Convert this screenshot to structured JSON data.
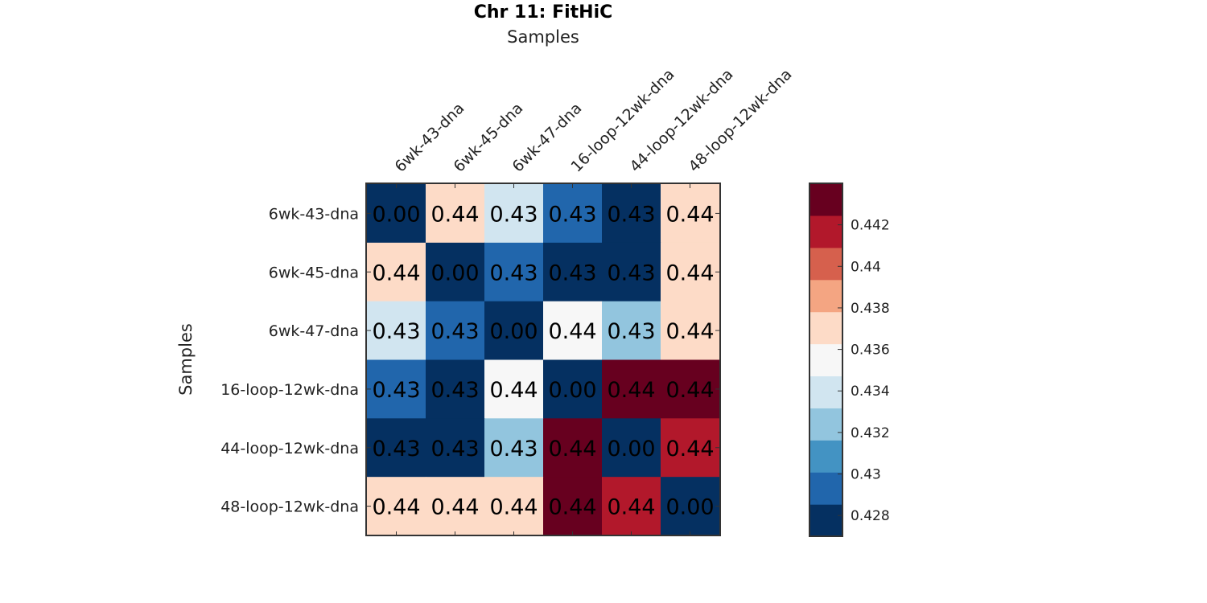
{
  "chart_data": {
    "type": "heatmap",
    "title": "Chr 11: FitHiC",
    "xlabel": "Samples",
    "ylabel": "Samples",
    "x_categories": [
      "6wk-43-dna",
      "6wk-45-dna",
      "6wk-47-dna",
      "16-loop-12wk-dna",
      "44-loop-12wk-dna",
      "48-loop-12wk-dna"
    ],
    "y_categories": [
      "6wk-43-dna",
      "6wk-45-dna",
      "6wk-47-dna",
      "16-loop-12wk-dna",
      "44-loop-12wk-dna",
      "48-loop-12wk-dna"
    ],
    "values": [
      [
        0.0,
        0.437,
        0.434,
        0.43,
        0.428,
        0.437
      ],
      [
        0.437,
        0.0,
        0.43,
        0.428,
        0.428,
        0.437
      ],
      [
        0.434,
        0.43,
        0.0,
        0.436,
        0.432,
        0.437
      ],
      [
        0.43,
        0.428,
        0.436,
        0.0,
        0.4435,
        0.4435
      ],
      [
        0.428,
        0.428,
        0.432,
        0.4435,
        0.0,
        0.442
      ],
      [
        0.437,
        0.437,
        0.437,
        0.4435,
        0.442,
        0.0
      ]
    ],
    "cell_labels": [
      [
        "0.00",
        "0.44",
        "0.43",
        "0.43",
        "0.43",
        "0.44"
      ],
      [
        "0.44",
        "0.00",
        "0.43",
        "0.43",
        "0.43",
        "0.44"
      ],
      [
        "0.43",
        "0.43",
        "0.00",
        "0.44",
        "0.43",
        "0.44"
      ],
      [
        "0.43",
        "0.43",
        "0.44",
        "0.00",
        "0.44",
        "0.44"
      ],
      [
        "0.43",
        "0.43",
        "0.43",
        "0.44",
        "0.00",
        "0.44"
      ],
      [
        "0.44",
        "0.44",
        "0.44",
        "0.44",
        "0.44",
        "0.00"
      ]
    ],
    "colorbar": {
      "range": [
        0.427,
        0.444
      ],
      "ticks": [
        "0.428",
        "0.43",
        "0.432",
        "0.434",
        "0.436",
        "0.438",
        "0.44",
        "0.442"
      ],
      "colors": [
        "#053061",
        "#2166ac",
        "#4393c3",
        "#92c5de",
        "#d1e5f0",
        "#f7f7f7",
        "#fddbc7",
        "#f4a582",
        "#d6604d",
        "#b2182b",
        "#67001f"
      ]
    },
    "grid": false,
    "legend": "colorbar-right"
  }
}
